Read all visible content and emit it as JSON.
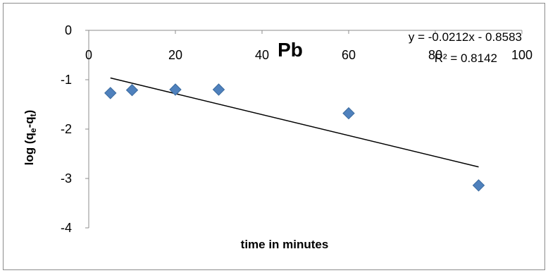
{
  "chart_data": {
    "type": "scatter",
    "title": "Pb",
    "xlabel": "time in minutes",
    "ylabel": {
      "base": "log (q",
      "sub1": "e",
      "mid": "-q",
      "sub2": "t",
      "end": ")"
    },
    "xlim": [
      0,
      100
    ],
    "ylim": [
      -4,
      0
    ],
    "xticks": [
      "0",
      "20",
      "40",
      "60",
      "80",
      "100"
    ],
    "yticks": [
      "0",
      "-1",
      "-2",
      "-3",
      "-4"
    ],
    "grid": false,
    "legend": "none",
    "series": [
      {
        "x": [
          5,
          10,
          20,
          30,
          60,
          90
        ],
        "y": [
          -1.27,
          -1.21,
          -1.2,
          -1.2,
          -1.68,
          -3.14
        ],
        "color": "#4f81bd",
        "marker": "diamond"
      }
    ],
    "trendline": {
      "slope": -0.0212,
      "intercept": -0.8583,
      "x_range": [
        5,
        90
      ],
      "equation": "y = -0.0212x - 0.8583",
      "r2": "R² = 0.8142"
    }
  }
}
